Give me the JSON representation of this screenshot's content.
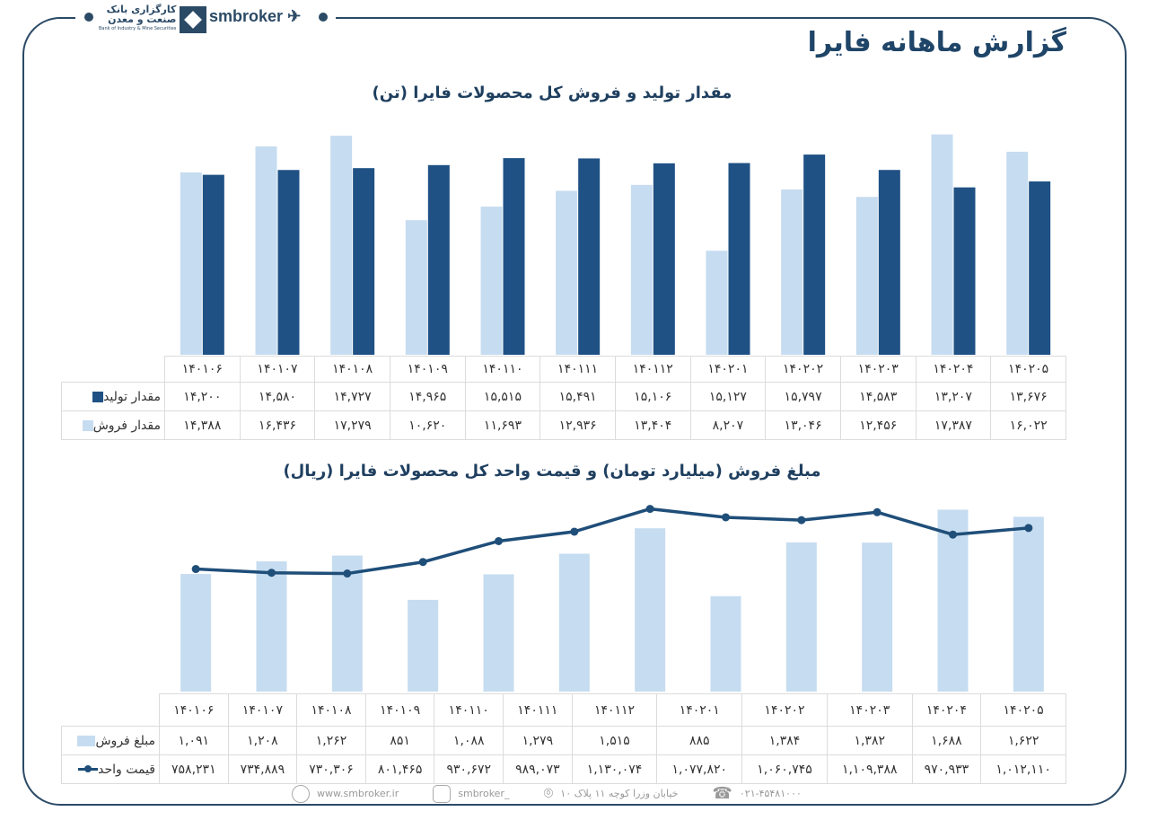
{
  "header": {
    "page_title": "گزارش ماهانه فایرا",
    "brand": "smbroker",
    "bank_logo_line1": "کارگزاری بانک",
    "bank_logo_line2": "صنعت و معدن",
    "bank_logo_en": "Bank of Industry & Mine Securities"
  },
  "colors": {
    "dark_bar": "#1f5185",
    "light_bar": "#c6dcf0",
    "line": "#1f4e79",
    "frame": "#2b4a66"
  },
  "chart_data": [
    {
      "type": "bar",
      "title": "مقدار تولید و فروش کل محصولات فایرا (تن)",
      "categories": [
        "۱۴۰۱۰۶",
        "۱۴۰۱۰۷",
        "۱۴۰۱۰۸",
        "۱۴۰۱۰۹",
        "۱۴۰۱۱۰",
        "۱۴۰۱۱۱",
        "۱۴۰۱۱۲",
        "۱۴۰۲۰۱",
        "۱۴۰۲۰۲",
        "۱۴۰۲۰۳",
        "۱۴۰۲۰۴",
        "۱۴۰۲۰۵"
      ],
      "ylim": [
        0,
        18000
      ],
      "grid": false,
      "legend": "data-table",
      "series": [
        {
          "name": "مقدار فروش",
          "color": "#c6dcf0",
          "values": [
            14388,
            16436,
            17279,
            10620,
            11693,
            12936,
            13404,
            8207,
            13046,
            12456,
            17387,
            16022
          ]
        },
        {
          "name": "مقدار تولید",
          "color": "#1f5185",
          "values": [
            14200,
            14580,
            14727,
            14965,
            15515,
            15491,
            15106,
            15127,
            15797,
            14583,
            13207,
            13676
          ]
        }
      ]
    },
    {
      "type": "bar+line",
      "title": "مبلغ فروش (میلیارد تومان) و قیمت واحد کل محصولات فایرا (ریال)",
      "categories": [
        "۱۴۰۱۰۶",
        "۱۴۰۱۰۷",
        "۱۴۰۱۰۸",
        "۱۴۰۱۰۹",
        "۱۴۰۱۱۰",
        "۱۴۰۱۱۱",
        "۱۴۰۱۱۲",
        "۱۴۰۲۰۱",
        "۱۴۰۲۰۲",
        "۱۴۰۲۰۳",
        "۱۴۰۲۰۴",
        "۱۴۰۲۰۵"
      ],
      "ylim": [
        0,
        1800
      ],
      "y2lim": [
        0,
        1200000
      ],
      "grid": false,
      "legend": "data-table",
      "series": [
        {
          "name": "مبلغ فروش",
          "type": "bar",
          "color": "#c6dcf0",
          "values": [
            1091,
            1208,
            1262,
            851,
            1088,
            1279,
            1515,
            885,
            1384,
            1382,
            1688,
            1622
          ]
        },
        {
          "name": "قیمت واحد",
          "type": "line",
          "axis": "secondary",
          "color": "#1f4e79",
          "values": [
            758231,
            734889,
            730306,
            801465,
            930672,
            989073,
            1130074,
            1077820,
            1060745,
            1109388,
            970933,
            1012110
          ]
        }
      ]
    }
  ],
  "footer": {
    "website": "www.smbroker.ir",
    "instagram": "smbroker_",
    "address": "خیابان وزرا کوچه ۱۱ پلاک ۱۰",
    "phone": "۰۲۱-۴۵۴۸۱۰۰۰",
    "icons": [
      "globe-icon",
      "instagram-icon",
      "location-pin-icon",
      "telephone-icon"
    ]
  }
}
